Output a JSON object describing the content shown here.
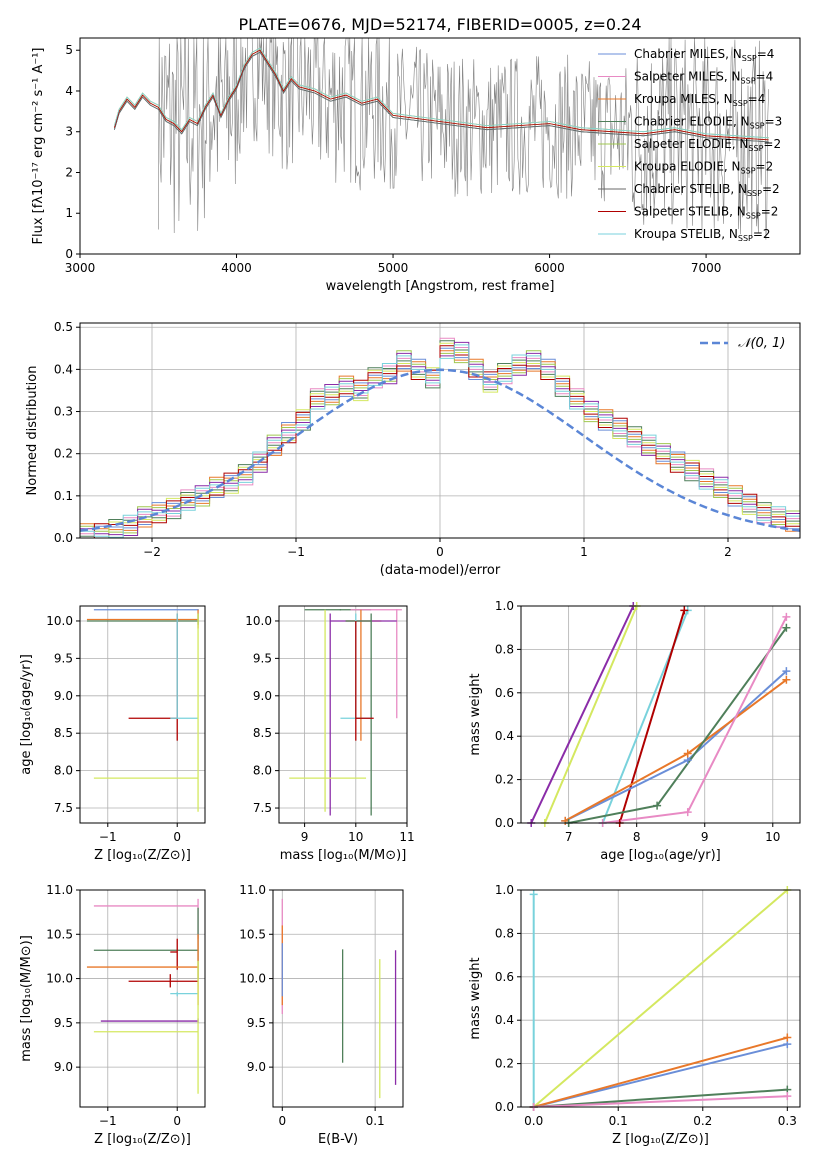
{
  "figure": {
    "title": "PLATE=0676, MJD=52174, FIBERID=0005, z=0.24"
  },
  "series_colors": {
    "Chabrier MILES": "#6a8ed8",
    "Salpeter MILES": "#e88ac4",
    "Kroupa MILES": "#e8782a",
    "Chabrier ELODIE": "#4f7f5a",
    "Salpeter ELODIE": "#a0c850",
    "Kroupa ELODIE": "#d4e860",
    "Chabrier STELIB": "#6a6a6a",
    "Salpeter STELIB": "#b00000",
    "Kroupa STELIB": "#79d2dc",
    "Extra purple": "#8a2ca8"
  },
  "chart_data": [
    {
      "id": "spectrum",
      "type": "line",
      "title": "PLATE=0676, MJD=52174, FIBERID=0005, z=0.24",
      "xlabel": "wavelength [Angstrom, rest frame]",
      "ylabel": "Flux [fλ10⁻¹⁷ erg cm⁻² s⁻¹ A⁻¹]",
      "xlim": [
        3000,
        7600
      ],
      "ylim": [
        0,
        5.3
      ],
      "xticks": [
        3000,
        4000,
        5000,
        6000,
        7000
      ],
      "yticks": [
        0,
        1,
        2,
        3,
        4,
        5
      ],
      "grid": false,
      "legend_position": "top-right",
      "legend": [
        {
          "label": "Chabrier MILES, N",
          "sub": "SSP",
          "suffix": "=4",
          "color": "#6a8ed8"
        },
        {
          "label": "Salpeter MILES, N",
          "sub": "SSP",
          "suffix": "=4",
          "color": "#e88ac4"
        },
        {
          "label": "Kroupa MILES, N",
          "sub": "SSP",
          "suffix": "=4",
          "color": "#e8782a"
        },
        {
          "label": "Chabrier ELODIE, N",
          "sub": "SSP",
          "suffix": "=3",
          "color": "#4f7f5a"
        },
        {
          "label": "Salpeter ELODIE, N",
          "sub": "SSP",
          "suffix": "=2",
          "color": "#a0c850"
        },
        {
          "label": "Kroupa ELODIE, N",
          "sub": "SSP",
          "suffix": "=2",
          "color": "#d4e860"
        },
        {
          "label": "Chabrier STELIB, N",
          "sub": "SSP",
          "suffix": "=2",
          "color": "#6a6a6a"
        },
        {
          "label": "Salpeter STELIB, N",
          "sub": "SSP",
          "suffix": "=2",
          "color": "#b00000"
        },
        {
          "label": "Kroupa STELIB, N",
          "sub": "SSP",
          "suffix": "=2",
          "color": "#79d2dc"
        }
      ],
      "model_curve": {
        "x": [
          3220,
          3250,
          3300,
          3350,
          3400,
          3450,
          3500,
          3550,
          3600,
          3650,
          3700,
          3750,
          3800,
          3850,
          3900,
          3950,
          4000,
          4050,
          4100,
          4150,
          4200,
          4250,
          4300,
          4350,
          4400,
          4500,
          4600,
          4700,
          4800,
          4900,
          5000,
          5200,
          5400,
          5600,
          5800,
          6000,
          6200,
          6400,
          6600,
          6800,
          7000,
          7200,
          7400
        ],
        "y": [
          3.1,
          3.5,
          3.8,
          3.6,
          3.9,
          3.7,
          3.6,
          3.3,
          3.2,
          3.0,
          3.3,
          3.2,
          3.6,
          3.9,
          3.4,
          3.8,
          4.1,
          4.6,
          4.9,
          5.0,
          4.7,
          4.4,
          4.0,
          4.3,
          4.1,
          4.0,
          3.8,
          3.9,
          3.7,
          3.8,
          3.4,
          3.3,
          3.2,
          3.1,
          3.15,
          3.2,
          3.05,
          3.0,
          2.95,
          3.05,
          2.9,
          2.85,
          2.8
        ]
      }
    },
    {
      "id": "residual-histogram",
      "type": "line",
      "xlabel": "(data-model)/error",
      "ylabel": "Normed distribution",
      "xlim": [
        -2.5,
        2.5
      ],
      "ylim": [
        0,
        0.51
      ],
      "xticks": [
        -2,
        -1,
        0,
        1,
        2
      ],
      "yticks": [
        0.0,
        0.1,
        0.2,
        0.3,
        0.4,
        0.5
      ],
      "grid": true,
      "legend_position": "top-right",
      "legend": [
        {
          "label": "𝒩(0, 1)",
          "color": "#5b86d6"
        }
      ],
      "bin_width": 0.1,
      "bin_start": -2.5,
      "histogram": [
        0.01,
        0.01,
        0.02,
        0.03,
        0.05,
        0.06,
        0.07,
        0.09,
        0.1,
        0.12,
        0.13,
        0.15,
        0.18,
        0.22,
        0.25,
        0.28,
        0.33,
        0.34,
        0.36,
        0.35,
        0.38,
        0.39,
        0.42,
        0.4,
        0.38,
        0.45,
        0.44,
        0.4,
        0.37,
        0.39,
        0.41,
        0.42,
        0.4,
        0.36,
        0.33,
        0.3,
        0.28,
        0.26,
        0.24,
        0.22,
        0.2,
        0.18,
        0.16,
        0.14,
        0.12,
        0.1,
        0.08,
        0.06,
        0.05,
        0.04
      ]
    },
    {
      "id": "age-vs-z",
      "type": "scatter",
      "xlabel": "Z [log₁₀(Z/Z⊙)]",
      "ylabel": "age  [log₁₀(age/yr)]",
      "xlim": [
        -1.4,
        0.4
      ],
      "ylim": [
        7.3,
        10.2
      ],
      "xticks": [
        -1,
        0
      ],
      "yticks": [
        7.5,
        8.0,
        8.5,
        9.0,
        9.5,
        10.0
      ],
      "grid": true
    },
    {
      "id": "age-vs-mass",
      "type": "scatter",
      "xlabel": "mass [log₁₀(M/M⊙)]",
      "xlim": [
        8.5,
        11.0
      ],
      "ylim": [
        7.3,
        10.2
      ],
      "xticks": [
        9,
        10,
        11
      ],
      "yticks": [
        7.5,
        8.0,
        8.5,
        9.0,
        9.5,
        10.0
      ],
      "grid": true
    },
    {
      "id": "mass-weight-vs-age",
      "type": "line",
      "xlabel": "age  [log₁₀(age/yr)]",
      "ylabel": "mass weight",
      "xlim": [
        6.3,
        10.4
      ],
      "ylim": [
        0,
        1.0
      ],
      "xticks": [
        7,
        8,
        9,
        10
      ],
      "yticks": [
        0.0,
        0.2,
        0.4,
        0.6,
        0.8,
        1.0
      ],
      "grid": true,
      "series": [
        {
          "color": "#8a2ca8",
          "x": [
            6.45,
            7.95
          ],
          "y": [
            0.0,
            1.0
          ]
        },
        {
          "color": "#d4e860",
          "x": [
            6.65,
            8.0
          ],
          "y": [
            0.0,
            1.0
          ]
        },
        {
          "color": "#79d2dc",
          "x": [
            7.5,
            8.75
          ],
          "y": [
            0.0,
            0.98
          ]
        },
        {
          "color": "#b00000",
          "x": [
            7.75,
            8.7
          ],
          "y": [
            0.0,
            0.98
          ]
        },
        {
          "color": "#6a8ed8",
          "x": [
            6.95,
            8.75,
            10.2
          ],
          "y": [
            0.01,
            0.29,
            0.7
          ]
        },
        {
          "color": "#e8782a",
          "x": [
            6.95,
            8.75,
            10.2
          ],
          "y": [
            0.01,
            0.32,
            0.66
          ]
        },
        {
          "color": "#4f7f5a",
          "x": [
            7.0,
            8.3,
            10.2
          ],
          "y": [
            0.0,
            0.08,
            0.9
          ]
        },
        {
          "color": "#e88ac4",
          "x": [
            7.5,
            8.75,
            10.2
          ],
          "y": [
            0.0,
            0.05,
            0.95
          ]
        }
      ]
    },
    {
      "id": "mass-vs-z",
      "type": "scatter",
      "xlabel": "Z [log₁₀(Z/Z⊙)]",
      "ylabel": "mass [log₁₀(M/M⊙)]",
      "xlim": [
        -1.4,
        0.4
      ],
      "ylim": [
        8.55,
        11.0
      ],
      "xticks": [
        -1,
        0
      ],
      "yticks": [
        9.0,
        9.5,
        10.0,
        10.5,
        11.0
      ],
      "grid": true
    },
    {
      "id": "mass-vs-ebv",
      "type": "scatter",
      "xlabel": "E(B-V)",
      "xlim": [
        -0.01,
        0.13
      ],
      "ylim": [
        8.55,
        11.0
      ],
      "xticks": [
        0.0,
        0.1
      ],
      "yticks": [
        9.0,
        9.5,
        10.0,
        10.5,
        11.0
      ],
      "grid": true
    },
    {
      "id": "mass-weight-vs-z",
      "type": "line",
      "xlabel": "Z [log₁₀(Z/Z⊙)]",
      "ylabel": "mass weight",
      "xlim": [
        -0.015,
        0.315
      ],
      "ylim": [
        0,
        1.0
      ],
      "xticks": [
        0.0,
        0.1,
        0.2,
        0.3
      ],
      "yticks": [
        0.0,
        0.2,
        0.4,
        0.6,
        0.8,
        1.0
      ],
      "grid": true,
      "series": [
        {
          "color": "#79d2dc",
          "x": [
            0.0,
            0.0
          ],
          "y": [
            0.0,
            0.98
          ]
        },
        {
          "color": "#d4e860",
          "x": [
            0.0,
            0.3
          ],
          "y": [
            0.0,
            1.0
          ]
        },
        {
          "color": "#6a8ed8",
          "x": [
            0.0,
            0.3
          ],
          "y": [
            0.0,
            0.29
          ]
        },
        {
          "color": "#e8782a",
          "x": [
            0.0,
            0.3
          ],
          "y": [
            0.0,
            0.32
          ]
        },
        {
          "color": "#4f7f5a",
          "x": [
            0.0,
            0.3
          ],
          "y": [
            0.0,
            0.08
          ]
        },
        {
          "color": "#e88ac4",
          "x": [
            0.0,
            0.3
          ],
          "y": [
            0.0,
            0.05
          ]
        }
      ]
    }
  ]
}
